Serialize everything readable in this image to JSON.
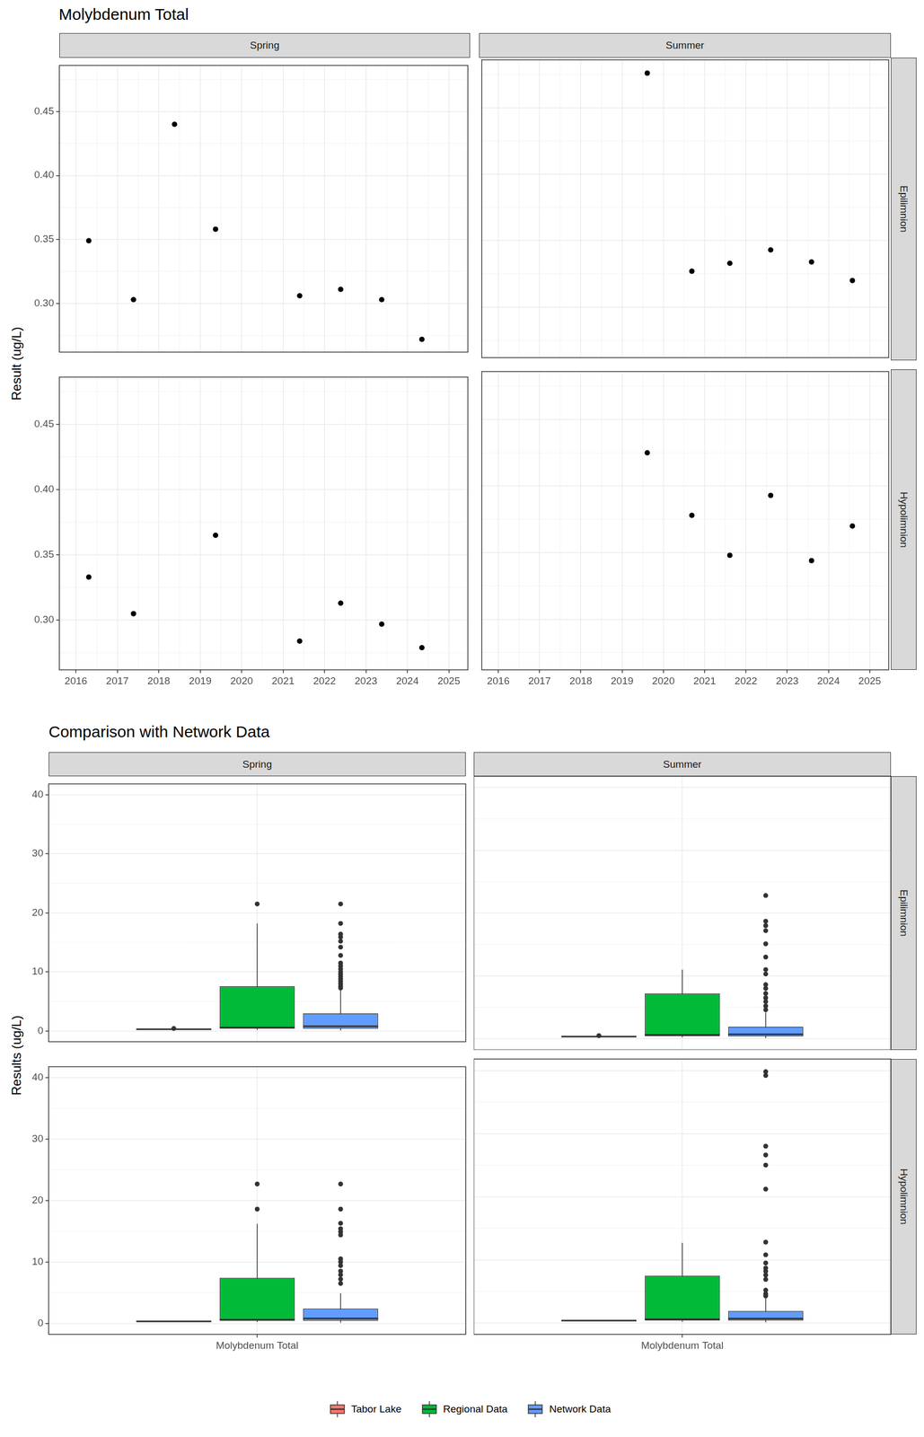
{
  "chart_data": [
    {
      "type": "scatter",
      "title": "Molybdenum Total",
      "y_label": "Result (ug/L)",
      "columns": [
        "Spring",
        "Summer"
      ],
      "rows": [
        "Epilimnion",
        "Hypolimnion"
      ],
      "xlim": [
        2015.6,
        2025.46
      ],
      "xticks": [
        2016,
        2017,
        2018,
        2019,
        2020,
        2021,
        2022,
        2023,
        2024,
        2025
      ],
      "ylim": [
        0.262,
        0.486
      ],
      "yticks": [
        {
          "value": 0.3,
          "label": "0.30"
        },
        {
          "value": 0.35,
          "label": "0.35"
        },
        {
          "value": 0.4,
          "label": "0.40"
        },
        {
          "value": 0.45,
          "label": "0.45"
        }
      ],
      "grid": true,
      "color": "#000000",
      "panels": [
        {
          "column": "Spring",
          "row": "Epilimnion",
          "x": [
            2016.31,
            2017.39,
            2018.38,
            2019.37,
            2021.4,
            2022.39,
            2023.38,
            2024.35
          ],
          "values": [
            0.349,
            0.303,
            0.44,
            0.358,
            0.306,
            0.311,
            0.303,
            0.272
          ]
        },
        {
          "column": "Summer",
          "row": "Epilimnion",
          "x": [
            2019.61,
            2020.69,
            2021.61,
            2022.6,
            2023.59,
            2024.58
          ],
          "values": [
            0.476,
            0.327,
            0.333,
            0.343,
            0.334,
            0.32
          ]
        },
        {
          "column": "Spring",
          "row": "Hypolimnion",
          "x": [
            2016.31,
            2017.39,
            2019.37,
            2021.4,
            2022.39,
            2023.38,
            2024.35
          ],
          "values": [
            0.333,
            0.305,
            0.365,
            0.284,
            0.313,
            0.297,
            0.279
          ]
        },
        {
          "column": "Summer",
          "row": "Hypolimnion",
          "x": [
            2019.61,
            2020.69,
            2021.61,
            2022.6,
            2023.59,
            2024.58
          ],
          "values": [
            0.425,
            0.378,
            0.348,
            0.393,
            0.344,
            0.37
          ]
        }
      ]
    },
    {
      "type": "boxplot",
      "title": "Comparison with Network Data",
      "y_label": "Results (ug/L)",
      "columns": [
        "Spring",
        "Summer"
      ],
      "rows": [
        "Epilimnion",
        "Hypolimnion"
      ],
      "categories": [
        "Molybdenum Total"
      ],
      "ylim": [
        -1.8,
        41.8
      ],
      "yticks": [
        0,
        10,
        20,
        30,
        40
      ],
      "grid": true,
      "legend": "bottom",
      "series": [
        {
          "name": "Tabor Lake",
          "color": "#F8766D"
        },
        {
          "name": "Regional Data",
          "color": "#00BA38"
        },
        {
          "name": "Network Data",
          "color": "#619CFF"
        }
      ],
      "panels": [
        {
          "column": "Spring",
          "row": "Epilimnion",
          "boxes": [
            {
              "min": 0.272,
              "q1": 0.303,
              "median": 0.309,
              "q3": 0.351,
              "max": 0.358,
              "outliers": [
                0.44
              ]
            },
            {
              "min": 0.2,
              "q1": 0.4,
              "median": 0.6,
              "q3": 7.6,
              "max": 18.2,
              "outliers": [
                21.5
              ]
            },
            {
              "min": 0.1,
              "q1": 0.4,
              "median": 0.8,
              "q3": 3.0,
              "max": 7.0,
              "outliers": [
                7.3,
                7.6,
                8.0,
                8.4,
                8.8,
                9.2,
                9.6,
                10.0,
                10.5,
                11.0,
                11.5,
                12.8,
                14.2,
                15.2,
                15.9,
                16.4,
                18.2,
                21.5
              ]
            }
          ]
        },
        {
          "column": "Summer",
          "row": "Epilimnion",
          "boxes": [
            {
              "min": 0.32,
              "q1": 0.328,
              "median": 0.334,
              "q3": 0.34,
              "max": 0.343,
              "outliers": [
                0.476
              ]
            },
            {
              "min": 0.2,
              "q1": 0.4,
              "median": 0.6,
              "q3": 7.2,
              "max": 11.0,
              "outliers": []
            },
            {
              "min": 0.1,
              "q1": 0.35,
              "median": 0.7,
              "q3": 1.9,
              "max": 4.2,
              "outliers": [
                4.6,
                5.2,
                5.9,
                6.5,
                7.2,
                8.0,
                8.6,
                10.3,
                11.0,
                13.0,
                15.1,
                17.2,
                18.0,
                18.7,
                22.8
              ]
            }
          ]
        },
        {
          "column": "Spring",
          "row": "Hypolimnion",
          "boxes": [
            {
              "min": 0.279,
              "q1": 0.291,
              "median": 0.305,
              "q3": 0.323,
              "max": 0.365,
              "outliers": []
            },
            {
              "min": 0.2,
              "q1": 0.4,
              "median": 0.6,
              "q3": 7.4,
              "max": 16.2,
              "outliers": [
                18.6,
                22.7
              ]
            },
            {
              "min": 0.1,
              "q1": 0.4,
              "median": 0.8,
              "q3": 2.4,
              "max": 4.9,
              "outliers": [
                6.5,
                7.2,
                7.9,
                8.5,
                9.4,
                10.0,
                10.5,
                14.4,
                14.9,
                15.4,
                16.3,
                18.6,
                22.7
              ]
            }
          ]
        },
        {
          "column": "Summer",
          "row": "Hypolimnion",
          "boxes": [
            {
              "min": 0.344,
              "q1": 0.353,
              "median": 0.374,
              "q3": 0.39,
              "max": 0.425,
              "outliers": []
            },
            {
              "min": 0.2,
              "q1": 0.4,
              "median": 0.6,
              "q3": 7.5,
              "max": 12.7,
              "outliers": []
            },
            {
              "min": 0.1,
              "q1": 0.4,
              "median": 0.7,
              "q3": 1.9,
              "max": 4.0,
              "outliers": [
                4.3,
                4.6,
                5.2,
                6.9,
                7.6,
                8.2,
                8.7,
                9.5,
                10.8,
                12.8,
                21.2,
                25.0,
                26.6,
                28.0,
                39.2,
                39.8
              ]
            }
          ]
        }
      ]
    }
  ]
}
